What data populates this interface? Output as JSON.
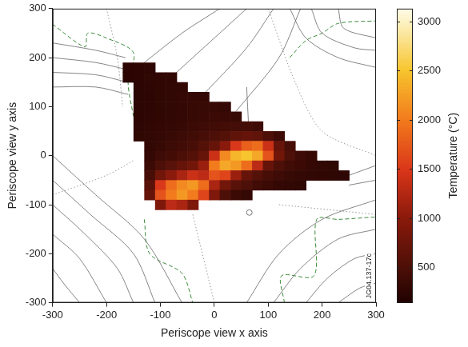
{
  "chart_data": {
    "type": "heatmap",
    "x_label": "Periscope view x axis",
    "y_label": "Periscope view y axis",
    "xlim": [
      -300,
      300
    ],
    "ylim": [
      -300,
      300
    ],
    "xticks": [
      -300,
      -200,
      -100,
      0,
      100,
      200,
      300
    ],
    "yticks": [
      -300,
      -200,
      -100,
      0,
      100,
      200,
      300
    ],
    "grid": false,
    "heatmap": {
      "x": [
        -160,
        -140,
        -120,
        -100,
        -80,
        -60,
        -40,
        -20,
        0,
        20,
        40,
        60,
        80,
        100,
        120,
        140,
        160,
        180,
        200,
        220,
        240
      ],
      "y": [
        180,
        160,
        140,
        120,
        100,
        80,
        60,
        40,
        20,
        0,
        -20,
        -40,
        -60,
        -80,
        -100
      ],
      "values": [
        [
          220,
          240,
          250,
          null,
          null,
          null,
          null,
          null,
          null,
          null,
          null,
          null,
          null,
          null,
          null,
          null,
          null,
          null,
          null,
          null,
          null
        ],
        [
          220,
          240,
          260,
          270,
          270,
          null,
          null,
          null,
          null,
          null,
          null,
          null,
          null,
          null,
          null,
          null,
          null,
          null,
          null,
          null,
          null
        ],
        [
          null,
          230,
          250,
          270,
          280,
          280,
          null,
          null,
          null,
          null,
          null,
          null,
          null,
          null,
          null,
          null,
          null,
          null,
          null,
          null,
          null
        ],
        [
          null,
          230,
          240,
          260,
          280,
          300,
          300,
          290,
          null,
          null,
          null,
          null,
          null,
          null,
          null,
          null,
          null,
          null,
          null,
          null,
          null
        ],
        [
          null,
          230,
          250,
          260,
          280,
          300,
          320,
          330,
          320,
          300,
          null,
          null,
          null,
          null,
          null,
          null,
          null,
          null,
          null,
          null,
          null
        ],
        [
          null,
          240,
          250,
          270,
          280,
          300,
          320,
          340,
          350,
          340,
          320,
          null,
          null,
          null,
          null,
          null,
          null,
          null,
          null,
          null,
          null
        ],
        [
          null,
          250,
          270,
          290,
          300,
          320,
          350,
          380,
          400,
          420,
          430,
          420,
          380,
          null,
          null,
          null,
          null,
          null,
          null,
          null,
          null
        ],
        [
          null,
          260,
          280,
          300,
          330,
          360,
          400,
          450,
          500,
          550,
          650,
          700,
          650,
          500,
          380,
          null,
          null,
          null,
          null,
          null,
          null
        ],
        [
          null,
          null,
          280,
          320,
          360,
          400,
          450,
          550,
          700,
          1000,
          1500,
          1800,
          1900,
          1400,
          700,
          450,
          null,
          null,
          null,
          null,
          null
        ],
        [
          null,
          null,
          300,
          380,
          420,
          480,
          550,
          700,
          1400,
          2100,
          2400,
          2500,
          2300,
          1700,
          800,
          500,
          380,
          320,
          null,
          null,
          null
        ],
        [
          null,
          null,
          350,
          500,
          600,
          700,
          800,
          1100,
          2000,
          2300,
          2200,
          1900,
          1300,
          700,
          500,
          400,
          350,
          300,
          280,
          260,
          null
        ],
        [
          null,
          null,
          450,
          800,
          1000,
          1200,
          1400,
          1300,
          1700,
          1600,
          1100,
          700,
          550,
          450,
          380,
          330,
          300,
          280,
          270,
          260,
          250
        ],
        [
          null,
          null,
          600,
          1500,
          1900,
          2100,
          2200,
          1900,
          1200,
          800,
          600,
          500,
          400,
          350,
          300,
          280,
          260,
          null,
          null,
          null,
          null
        ],
        [
          null,
          null,
          700,
          1700,
          2000,
          2200,
          2000,
          1600,
          900,
          500,
          350,
          300,
          null,
          null,
          null,
          null,
          null,
          null,
          null,
          null,
          null
        ],
        [
          null,
          null,
          null,
          900,
          1300,
          1200,
          900,
          null,
          null,
          null,
          null,
          null,
          null,
          null,
          null,
          null,
          null,
          null,
          null,
          null,
          null
        ]
      ]
    },
    "colorbar": {
      "label": "Temperature (°C)",
      "range": [
        140,
        3130
      ],
      "ticks": [
        500,
        1000,
        1500,
        2000,
        2500,
        3000
      ]
    },
    "outlines": [
      {
        "color": "#666666",
        "line_style": "solid",
        "points": [
          [
            -300,
            230
          ],
          [
            -220,
            215
          ],
          [
            -165,
            200
          ]
        ]
      },
      {
        "color": "#666666",
        "line_style": "solid",
        "points": [
          [
            -300,
            200
          ],
          [
            -220,
            190
          ],
          [
            -160,
            175
          ]
        ]
      },
      {
        "color": "#666666",
        "line_style": "solid",
        "points": [
          [
            -300,
            170
          ],
          [
            -220,
            165
          ],
          [
            -162,
            150
          ]
        ]
      },
      {
        "color": "#666666",
        "line_style": "solid",
        "points": [
          [
            -300,
            140
          ],
          [
            -220,
            140
          ],
          [
            -160,
            125
          ]
        ]
      },
      {
        "color": "#666666",
        "line_style": "solid",
        "points": [
          [
            -130,
            190
          ],
          [
            -60,
            250
          ],
          [
            10,
            300
          ]
        ]
      },
      {
        "color": "#666666",
        "line_style": "solid",
        "points": [
          [
            -80,
            160
          ],
          [
            0,
            240
          ],
          [
            60,
            300
          ]
        ]
      },
      {
        "color": "#666666",
        "line_style": "solid",
        "points": [
          [
            -20,
            125
          ],
          [
            60,
            220
          ],
          [
            110,
            300
          ]
        ]
      },
      {
        "color": "#666666",
        "line_style": "solid",
        "points": [
          [
            40,
            90
          ],
          [
            120,
            200
          ],
          [
            160,
            300
          ]
        ]
      },
      {
        "color": "#666666",
        "line_style": "solid",
        "points": [
          [
            140,
            300
          ],
          [
            170,
            240
          ],
          [
            230,
            200
          ],
          [
            300,
            180
          ]
        ]
      },
      {
        "color": "#666666",
        "line_style": "solid",
        "points": [
          [
            180,
            300
          ],
          [
            200,
            250
          ],
          [
            260,
            220
          ],
          [
            300,
            215
          ]
        ]
      },
      {
        "color": "#666666",
        "line_style": "solid",
        "points": [
          [
            230,
            300
          ],
          [
            240,
            260
          ],
          [
            300,
            240
          ]
        ]
      },
      {
        "color": "#666666",
        "line_style": "solid",
        "points": [
          [
            -300,
            0
          ],
          [
            -220,
            -80
          ],
          [
            -130,
            -170
          ],
          [
            -60,
            -300
          ]
        ]
      },
      {
        "color": "#666666",
        "line_style": "solid",
        "points": [
          [
            -300,
            -50
          ],
          [
            -230,
            -120
          ],
          [
            -150,
            -200
          ],
          [
            -110,
            -300
          ]
        ]
      },
      {
        "color": "#666666",
        "line_style": "solid",
        "points": [
          [
            -300,
            -100
          ],
          [
            -240,
            -160
          ],
          [
            -180,
            -230
          ],
          [
            -150,
            -300
          ]
        ]
      },
      {
        "color": "#666666",
        "line_style": "solid",
        "points": [
          [
            -300,
            -160
          ],
          [
            -250,
            -210
          ],
          [
            -200,
            -300
          ]
        ]
      },
      {
        "color": "#666666",
        "line_style": "solid",
        "points": [
          [
            -250,
            -300
          ],
          [
            -280,
            -260
          ],
          [
            -300,
            -230
          ]
        ]
      },
      {
        "color": "#666666",
        "line_style": "solid",
        "points": [
          [
            60,
            -300
          ],
          [
            120,
            -200
          ],
          [
            200,
            -130
          ],
          [
            300,
            -90
          ]
        ]
      },
      {
        "color": "#666666",
        "line_style": "solid",
        "points": [
          [
            110,
            -300
          ],
          [
            160,
            -230
          ],
          [
            230,
            -170
          ],
          [
            300,
            -150
          ]
        ]
      },
      {
        "color": "#666666",
        "line_style": "solid",
        "points": [
          [
            170,
            -300
          ],
          [
            210,
            -250
          ],
          [
            260,
            -210
          ],
          [
            300,
            -200
          ]
        ]
      },
      {
        "color": "#666666",
        "line_style": "solid",
        "points": [
          [
            230,
            -300
          ],
          [
            270,
            -270
          ],
          [
            300,
            -260
          ]
        ]
      },
      {
        "color": "#666666",
        "line_style": "solid",
        "points": [
          [
            250,
            -40
          ],
          [
            300,
            -20
          ]
        ]
      },
      {
        "color": "#666666",
        "line_style": "solid",
        "points": [
          [
            250,
            -60
          ],
          [
            300,
            -50
          ]
        ]
      },
      {
        "color": "#666666",
        "line_style": "solid",
        "points": [
          [
            60,
            140
          ],
          [
            65,
            30
          ]
        ]
      },
      {
        "color": "#999999",
        "line_style": "dotted",
        "points": [
          [
            -300,
            -80
          ],
          [
            -200,
            -40
          ],
          [
            -150,
            -10
          ]
        ]
      },
      {
        "color": "#999999",
        "line_style": "dotted",
        "points": [
          [
            -200,
            300
          ],
          [
            -180,
            200
          ],
          [
            -170,
            100
          ]
        ]
      },
      {
        "color": "#999999",
        "line_style": "dotted",
        "points": [
          [
            100,
            300
          ],
          [
            150,
            150
          ],
          [
            200,
            50
          ],
          [
            300,
            0
          ]
        ]
      },
      {
        "color": "#999999",
        "line_style": "dotted",
        "points": [
          [
            -40,
            -120
          ],
          [
            0,
            -300
          ]
        ]
      },
      {
        "color": "#999999",
        "line_style": "dotted",
        "points": [
          [
            120,
            -100
          ],
          [
            300,
            -120
          ]
        ]
      },
      {
        "color": "#3a8a3a",
        "line_style": "dashed",
        "points": [
          [
            -300,
            268
          ],
          [
            -240,
            222
          ],
          [
            -235,
            250
          ],
          [
            -200,
            240
          ],
          [
            -150,
            210
          ],
          [
            -160,
            150
          ],
          [
            -150,
            80
          ]
        ]
      },
      {
        "color": "#3a8a3a",
        "line_style": "dashed",
        "points": [
          [
            140,
            200
          ],
          [
            170,
            235
          ],
          [
            200,
            250
          ],
          [
            230,
            270
          ],
          [
            300,
            275
          ]
        ]
      },
      {
        "color": "#3a8a3a",
        "line_style": "dashed",
        "points": [
          [
            -130,
            -130
          ],
          [
            -120,
            -200
          ],
          [
            -60,
            -240
          ],
          [
            -40,
            -300
          ]
        ]
      },
      {
        "color": "#3a8a3a",
        "line_style": "dashed",
        "points": [
          [
            130,
            -300
          ],
          [
            125,
            -245
          ],
          [
            185,
            -245
          ],
          [
            190,
            -130
          ],
          [
            230,
            -130
          ],
          [
            300,
            -125
          ]
        ]
      }
    ],
    "markers": [
      {
        "x": 65,
        "y": -116,
        "marker": "circle",
        "color": "#777777"
      }
    ],
    "annotations": [
      {
        "text": "JG04.137-17c"
      }
    ]
  }
}
